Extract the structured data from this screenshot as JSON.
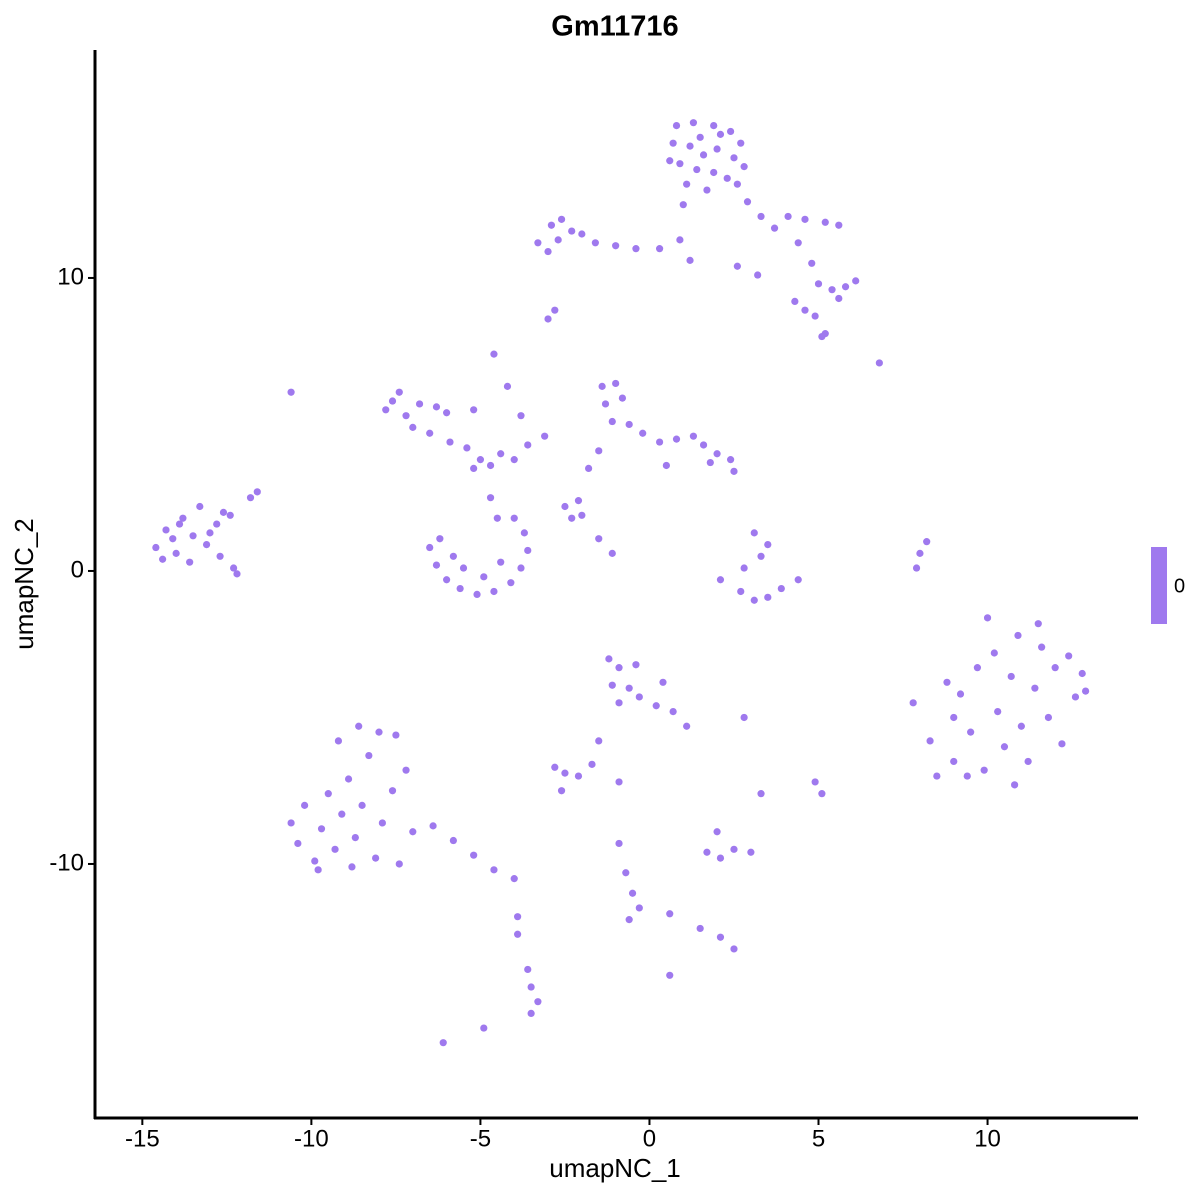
{
  "chart_data": {
    "type": "scatter",
    "title": "Gm11716",
    "x_label": "umapNC_1",
    "y_label": "umapNC_2",
    "color": "#9F79EE",
    "xlim": [
      -16.4,
      14.45
    ],
    "ylim": [
      -18.67,
      17.78
    ],
    "xticks": [
      -15,
      -10,
      -5,
      0,
      5,
      10
    ],
    "yticks": [
      -10,
      0,
      10
    ],
    "grid": false,
    "colorbar": {
      "ticks": [
        0
      ]
    },
    "x": [
      0.8,
      1.3,
      1.9,
      2.4,
      2.7,
      0.7,
      1.2,
      1.6,
      2.0,
      2.5,
      0.9,
      1.4,
      1.9,
      2.3,
      2.8,
      1.1,
      1.7,
      2.1,
      1.5,
      0.6,
      2.6,
      1.0,
      2.9,
      3.3,
      -3.3,
      -2.9,
      -2.6,
      -2.3,
      -2.0,
      -2.7,
      -1.6,
      -1.0,
      -0.4,
      0.3,
      0.9,
      1.2,
      -3.0,
      3.7,
      4.1,
      4.6,
      5.2,
      5.6,
      4.4,
      4.8,
      5.0,
      5.4,
      5.8,
      6.1,
      5.6,
      4.3,
      4.6,
      4.9,
      3.2,
      2.6,
      5.2,
      -14.6,
      -14.3,
      -14.0,
      -13.8,
      -13.5,
      -13.3,
      -13.1,
      -12.8,
      -12.6,
      -13.6,
      -14.1,
      -13.0,
      -12.7,
      -12.3,
      -12.2,
      -14.4,
      -12.4,
      -11.8,
      -11.6,
      -13.9,
      -7.6,
      -7.4,
      -7.8,
      -7.2,
      -6.8,
      -6.3,
      -7.0,
      -6.5,
      -5.9,
      -5.4,
      -5.0,
      -4.7,
      -5.2,
      -6.0,
      -5.2,
      -4.4,
      -4.0,
      -3.6,
      -3.1,
      -4.7,
      -4.5,
      -6.5,
      -6.3,
      -6.0,
      -5.6,
      -5.1,
      -4.6,
      -4.1,
      -3.8,
      -3.6,
      -3.7,
      -4.0,
      -5.5,
      -4.9,
      -4.4,
      -5.8,
      -6.2,
      -1.4,
      -1.0,
      -1.3,
      -0.8,
      -1.1,
      -0.6,
      -0.2,
      0.3,
      0.8,
      1.3,
      1.6,
      2.0,
      2.4,
      2.5,
      1.8,
      -1.5,
      -1.8,
      -2.1,
      -2.3,
      0.5,
      2.7,
      3.1,
      3.5,
      3.9,
      4.4,
      3.3,
      3.5,
      3.1,
      2.1,
      2.8,
      7.8,
      8.3,
      8.5,
      9.0,
      9.2,
      9.5,
      9.7,
      9.9,
      10.2,
      10.3,
      10.5,
      10.7,
      10.9,
      11.0,
      11.2,
      11.4,
      11.6,
      11.8,
      12.0,
      12.2,
      12.4,
      12.6,
      12.8,
      9.4,
      10.8,
      11.5,
      8.8,
      12.9,
      10.0,
      9.0,
      -10.6,
      -10.4,
      -10.2,
      -9.9,
      -9.7,
      -9.5,
      -9.3,
      -9.1,
      -8.9,
      -8.7,
      -8.5,
      -8.3,
      -8.1,
      -7.9,
      -7.6,
      -7.4,
      -9.2,
      -8.6,
      -8.0,
      -7.5,
      -7.2,
      -7.0,
      -6.4,
      -5.8,
      -5.2,
      -4.6,
      -4.0,
      -9.8,
      -8.8,
      -1.2,
      -0.9,
      -0.4,
      -1.1,
      -0.6,
      -0.3,
      0.2,
      0.7,
      1.1,
      -0.9,
      0.4,
      -2.8,
      -2.5,
      -2.1,
      -1.7,
      -1.5,
      -2.6,
      -0.9,
      1.7,
      2.1,
      2.5,
      3.0,
      2.0,
      3.3,
      2.8,
      -0.9,
      -0.7,
      -0.5,
      -0.3,
      -0.6,
      0.6,
      1.5,
      2.1,
      2.5,
      0.6,
      -3.6,
      -3.5,
      -3.3,
      -3.5,
      -3.9,
      -3.9,
      -6.1,
      -4.9,
      8.0,
      7.9,
      8.2,
      4.9,
      5.1,
      -4.6,
      -4.2,
      -3.8,
      -2.8,
      -3.0,
      -10.6,
      6.8,
      5.1,
      -2.0,
      -1.5,
      -1.1,
      -2.5
    ],
    "y": [
      15.2,
      15.3,
      15.2,
      15.0,
      14.6,
      14.6,
      14.5,
      14.2,
      14.4,
      14.1,
      13.9,
      13.7,
      13.6,
      13.4,
      13.8,
      13.2,
      13.0,
      14.9,
      14.8,
      14.0,
      13.2,
      12.5,
      12.6,
      12.1,
      11.2,
      11.8,
      12.0,
      11.6,
      11.5,
      11.3,
      11.2,
      11.1,
      11.0,
      11.0,
      11.3,
      10.6,
      10.9,
      11.7,
      12.1,
      12.0,
      11.9,
      11.8,
      11.2,
      10.5,
      9.8,
      9.6,
      9.7,
      9.9,
      9.3,
      9.2,
      8.9,
      8.7,
      10.1,
      10.4,
      8.1,
      0.8,
      1.4,
      0.6,
      1.8,
      1.2,
      2.2,
      0.9,
      1.6,
      2.0,
      0.3,
      1.1,
      1.3,
      0.5,
      0.1,
      -0.1,
      0.4,
      1.9,
      2.5,
      2.7,
      1.6,
      5.8,
      6.1,
      5.5,
      5.3,
      5.7,
      5.6,
      4.9,
      4.7,
      4.4,
      4.2,
      3.8,
      3.6,
      3.5,
      5.4,
      5.5,
      4.0,
      3.8,
      4.3,
      4.6,
      2.5,
      1.8,
      0.8,
      0.2,
      -0.3,
      -0.6,
      -0.8,
      -0.7,
      -0.4,
      0.1,
      0.7,
      1.3,
      1.8,
      0.1,
      -0.2,
      0.3,
      0.5,
      1.1,
      6.3,
      6.4,
      5.7,
      5.9,
      5.1,
      5.0,
      4.7,
      4.4,
      4.5,
      4.6,
      4.3,
      4.0,
      3.8,
      3.4,
      3.7,
      4.1,
      3.5,
      2.4,
      1.8,
      3.6,
      -0.7,
      -1.0,
      -0.9,
      -0.6,
      -0.3,
      0.5,
      0.9,
      1.3,
      -0.3,
      0.1,
      -4.5,
      -5.8,
      -7.0,
      -6.5,
      -4.2,
      -5.5,
      -3.3,
      -6.8,
      -2.8,
      -4.8,
      -6.0,
      -3.6,
      -2.2,
      -5.3,
      -6.5,
      -4.0,
      -2.6,
      -5.0,
      -3.3,
      -5.9,
      -2.9,
      -4.3,
      -3.5,
      -7.0,
      -7.3,
      -1.8,
      -3.8,
      -4.1,
      -1.6,
      -5.0,
      -8.6,
      -9.3,
      -8.0,
      -9.9,
      -8.8,
      -7.6,
      -9.5,
      -8.3,
      -7.1,
      -9.1,
      -8.0,
      -6.3,
      -9.8,
      -8.6,
      -7.5,
      -10.0,
      -5.8,
      -5.3,
      -5.5,
      -5.6,
      -6.8,
      -8.9,
      -8.7,
      -9.2,
      -9.7,
      -10.2,
      -10.5,
      -10.2,
      -10.1,
      -3.0,
      -3.3,
      -3.2,
      -3.9,
      -4.0,
      -4.3,
      -4.6,
      -4.8,
      -5.3,
      -4.5,
      -3.8,
      -6.7,
      -6.9,
      -7.0,
      -6.6,
      -5.8,
      -7.5,
      -7.2,
      -9.6,
      -9.8,
      -9.5,
      -9.6,
      -8.9,
      -7.6,
      -5.0,
      -9.3,
      -10.3,
      -11.0,
      -11.5,
      -11.9,
      -11.7,
      -12.2,
      -12.5,
      -12.9,
      -13.8,
      -13.6,
      -14.2,
      -14.7,
      -15.1,
      -11.8,
      -12.4,
      -16.1,
      -15.6,
      0.6,
      0.1,
      1.0,
      -7.2,
      -7.6,
      7.4,
      6.3,
      5.3,
      8.9,
      8.6,
      6.1,
      7.1,
      8.0,
      1.9,
      1.1,
      0.6,
      2.2
    ]
  }
}
